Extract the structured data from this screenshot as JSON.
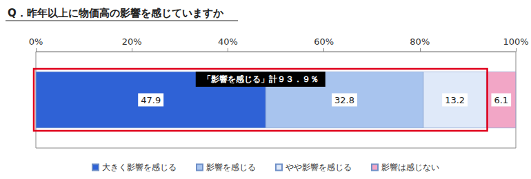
{
  "chart_data": {
    "type": "bar",
    "title": "Q．昨年以上に物価高の影響を感じていますか",
    "orientation": "horizontal",
    "stacked": true,
    "data_labels": true,
    "tick_labels": "x",
    "grid": false,
    "legend": "bottom",
    "annotation": "「影響を感じる」計９３．９％",
    "categories": [
      null
    ],
    "series": [
      {
        "name": "大きく影響を感じる",
        "color": "#2f62d6",
        "values": [
          47.9
        ]
      },
      {
        "name": "影響を感じる",
        "color": "#a8c4ee",
        "values": [
          32.8
        ]
      },
      {
        "name": "やや影響を感じる",
        "color": "#dfe9f9",
        "values": [
          13.2
        ]
      },
      {
        "name": "影響は感じない",
        "color": "#f2a6c6",
        "values": [
          6.1
        ]
      }
    ],
    "xlim": [
      0,
      100
    ],
    "xticks": [
      {
        "value": 0,
        "label": "0%"
      },
      {
        "value": 20,
        "label": "20%"
      },
      {
        "value": 40,
        "label": "40%"
      },
      {
        "value": 60,
        "label": "60%"
      },
      {
        "value": 80,
        "label": "80%"
      },
      {
        "value": 100,
        "label": "100%"
      }
    ]
  }
}
